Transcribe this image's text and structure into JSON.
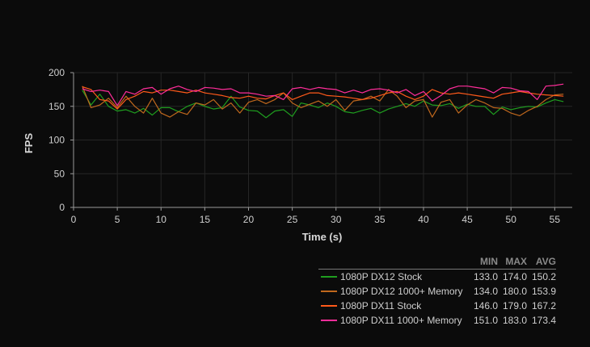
{
  "chart_data": {
    "type": "line",
    "xlabel": "Time (s)",
    "ylabel": "FPS",
    "xlim": [
      0,
      57
    ],
    "ylim": [
      0,
      200
    ],
    "xticks": [
      0,
      5,
      10,
      15,
      20,
      25,
      30,
      35,
      40,
      45,
      50,
      55
    ],
    "yticks": [
      0,
      50,
      100,
      150,
      200
    ],
    "grid": true,
    "legend_position": "bottom-right",
    "legend_columns": [
      "MIN",
      "MAX",
      "AVG"
    ],
    "series": [
      {
        "name": "1080P DX12 Stock",
        "color": "#1f9e1f",
        "min": "133.0",
        "max": "174.0",
        "avg": "150.2",
        "x": [
          1,
          2,
          3,
          4,
          5,
          6,
          7,
          8,
          9,
          10,
          11,
          12,
          13,
          14,
          15,
          16,
          17,
          18,
          19,
          20,
          21,
          22,
          23,
          24,
          25,
          26,
          27,
          28,
          29,
          30,
          31,
          32,
          33,
          34,
          35,
          36,
          37,
          38,
          39,
          40,
          41,
          42,
          43,
          44,
          45,
          46,
          47,
          48,
          49,
          50,
          51,
          52,
          53,
          54,
          55,
          56
        ],
        "y": [
          174,
          152,
          168,
          150,
          143,
          145,
          140,
          147,
          137,
          148,
          148,
          142,
          150,
          155,
          150,
          146,
          148,
          165,
          149,
          144,
          143,
          133,
          143,
          145,
          135,
          155,
          152,
          148,
          155,
          150,
          142,
          140,
          144,
          147,
          140,
          146,
          150,
          154,
          150,
          158,
          152,
          151,
          154,
          147,
          153,
          150,
          150,
          138,
          149,
          145,
          148,
          150,
          149,
          155,
          160,
          157
        ]
      },
      {
        "name": "1080P DX12 1000+ Memory",
        "color": "#c0681d",
        "min": "134.0",
        "max": "180.0",
        "avg": "153.9",
        "x": [
          1,
          2,
          3,
          4,
          5,
          6,
          7,
          8,
          9,
          10,
          11,
          12,
          13,
          14,
          15,
          16,
          17,
          18,
          19,
          20,
          21,
          22,
          23,
          24,
          25,
          26,
          27,
          28,
          29,
          30,
          31,
          32,
          33,
          34,
          35,
          36,
          37,
          38,
          39,
          40,
          41,
          42,
          43,
          44,
          45,
          46,
          47,
          48,
          49,
          50,
          51,
          52,
          53,
          54,
          55,
          56
        ],
        "y": [
          180,
          148,
          152,
          162,
          148,
          165,
          150,
          140,
          162,
          140,
          134,
          142,
          138,
          155,
          152,
          160,
          146,
          155,
          140,
          156,
          160,
          154,
          160,
          170,
          155,
          148,
          153,
          158,
          150,
          160,
          144,
          158,
          160,
          165,
          158,
          175,
          165,
          148,
          158,
          160,
          134,
          156,
          160,
          140,
          152,
          160,
          155,
          148,
          147,
          140,
          136,
          144,
          150,
          160,
          167,
          168
        ]
      },
      {
        "name": "1080P DX11 Stock",
        "color": "#ff5a1a",
        "min": "146.0",
        "max": "179.0",
        "avg": "167.2",
        "x": [
          1,
          2,
          3,
          4,
          5,
          6,
          7,
          8,
          9,
          10,
          11,
          12,
          13,
          14,
          15,
          16,
          17,
          18,
          19,
          20,
          21,
          22,
          23,
          24,
          25,
          26,
          27,
          28,
          29,
          30,
          31,
          32,
          33,
          34,
          35,
          36,
          37,
          38,
          39,
          40,
          41,
          42,
          43,
          44,
          45,
          46,
          47,
          48,
          49,
          50,
          51,
          52,
          53,
          54,
          55,
          56
        ],
        "y": [
          179,
          175,
          160,
          158,
          146,
          160,
          165,
          172,
          170,
          174,
          174,
          172,
          170,
          174,
          170,
          168,
          166,
          163,
          162,
          165,
          162,
          161,
          166,
          170,
          160,
          165,
          170,
          170,
          166,
          165,
          164,
          162,
          160,
          162,
          166,
          170,
          172,
          165,
          160,
          165,
          175,
          170,
          168,
          170,
          168,
          166,
          164,
          162,
          168,
          170,
          172,
          170,
          168,
          167,
          166,
          165
        ]
      },
      {
        "name": "1080P DX11 1000+ Memory",
        "color": "#ff2d9a",
        "min": "151.0",
        "max": "183.0",
        "avg": "173.4",
        "x": [
          1,
          2,
          3,
          4,
          5,
          6,
          7,
          8,
          9,
          10,
          11,
          12,
          13,
          14,
          15,
          16,
          17,
          18,
          19,
          20,
          21,
          22,
          23,
          24,
          25,
          26,
          27,
          28,
          29,
          30,
          31,
          32,
          33,
          34,
          35,
          36,
          37,
          38,
          39,
          40,
          41,
          42,
          43,
          44,
          45,
          46,
          47,
          48,
          49,
          50,
          51,
          52,
          53,
          54,
          55,
          56
        ],
        "y": [
          176,
          172,
          174,
          172,
          151,
          172,
          168,
          176,
          178,
          168,
          176,
          180,
          175,
          172,
          178,
          177,
          175,
          176,
          170,
          170,
          168,
          165,
          166,
          160,
          176,
          178,
          175,
          178,
          176,
          175,
          170,
          174,
          170,
          175,
          176,
          174,
          170,
          175,
          166,
          172,
          158,
          166,
          176,
          180,
          180,
          178,
          176,
          170,
          178,
          177,
          173,
          172,
          160,
          180,
          181,
          183
        ]
      }
    ]
  }
}
